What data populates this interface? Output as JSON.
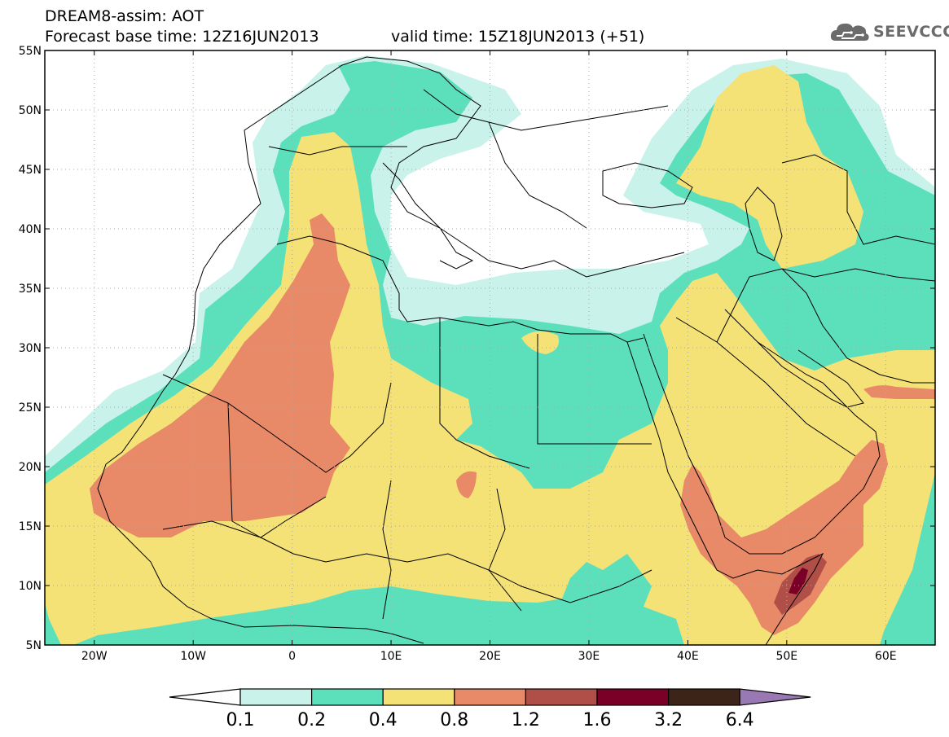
{
  "header": {
    "title_line1": "DREAM8-assim: AOT",
    "title_line2": "Forecast base time: 12Z16JUN2013",
    "valid_time": "valid time: 15Z18JUN2013 (+51)",
    "logo_text": "SEEVCCC"
  },
  "map": {
    "lon_range": [
      -25,
      65
    ],
    "lat_range": [
      5,
      55
    ],
    "lat_ticks": [
      {
        "value": 55,
        "label": "55N"
      },
      {
        "value": 50,
        "label": "50N"
      },
      {
        "value": 45,
        "label": "45N"
      },
      {
        "value": 40,
        "label": "40N"
      },
      {
        "value": 35,
        "label": "35N"
      },
      {
        "value": 30,
        "label": "30N"
      },
      {
        "value": 25,
        "label": "25N"
      },
      {
        "value": 20,
        "label": "20N"
      },
      {
        "value": 15,
        "label": "15N"
      },
      {
        "value": 10,
        "label": "10N"
      },
      {
        "value": 5,
        "label": "5N"
      }
    ],
    "lon_ticks": [
      {
        "value": -20,
        "label": "20W"
      },
      {
        "value": -10,
        "label": "10W"
      },
      {
        "value": 0,
        "label": "0"
      },
      {
        "value": 10,
        "label": "10E"
      },
      {
        "value": 20,
        "label": "20E"
      },
      {
        "value": 30,
        "label": "30E"
      },
      {
        "value": 40,
        "label": "40E"
      },
      {
        "value": 50,
        "label": "50E"
      },
      {
        "value": 60,
        "label": "60E"
      }
    ],
    "grid": "dotted"
  },
  "colorbar": {
    "labels": [
      "0.1",
      "0.2",
      "0.4",
      "0.8",
      "1.2",
      "1.6",
      "3.2",
      "6.4"
    ],
    "under_color": "#ffffff",
    "colors": [
      "#c8f2ea",
      "#5ce0bc",
      "#f5e276",
      "#e88a68",
      "#b04e48",
      "#7a0028",
      "#3c2418"
    ],
    "over_color": "#9a78b4"
  }
}
